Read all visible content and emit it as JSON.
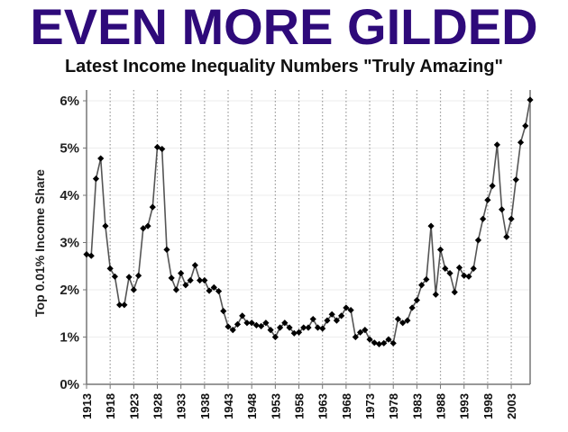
{
  "header": {
    "title": "EVEN MORE GILDED",
    "subtitle": "Latest Income Inequality Numbers \"Truly Amazing\""
  },
  "colors": {
    "title": "#2e0a7a",
    "line": "#555555",
    "marker": "#000000",
    "gridline": "#999999",
    "axis": "#777777"
  },
  "chart_data": {
    "type": "line",
    "title": "EVEN MORE GILDED",
    "subtitle": "Latest Income Inequality Numbers \"Truly Amazing\"",
    "xlabel": "",
    "ylabel": "Top 0.01% Income Share",
    "ylim": [
      0,
      6
    ],
    "xlim": [
      1913,
      2007
    ],
    "y_ticks": [
      "0%",
      "1%",
      "2%",
      "3%",
      "4%",
      "5%",
      "6%"
    ],
    "x_ticks": [
      "1913",
      "1918",
      "1923",
      "1928",
      "1933",
      "1938",
      "1943",
      "1948",
      "1953",
      "1958",
      "1963",
      "1968",
      "1973",
      "1978",
      "1983",
      "1988",
      "1993",
      "1998",
      "2003"
    ],
    "grid": {
      "vertical": "dotted at each x tick",
      "horizontal": "faint at each y tick"
    },
    "legend": "none",
    "marker": "diamond",
    "series": [
      {
        "name": "Top 0.01% Income Share (%)",
        "start_year": 1913,
        "values": [
          2.75,
          2.72,
          4.35,
          4.78,
          3.35,
          2.45,
          2.28,
          1.68,
          1.68,
          2.27,
          2.0,
          2.3,
          3.3,
          3.35,
          3.75,
          5.02,
          4.98,
          2.85,
          2.25,
          2.0,
          2.35,
          2.1,
          2.2,
          2.52,
          2.2,
          2.2,
          1.98,
          2.05,
          1.97,
          1.55,
          1.22,
          1.15,
          1.27,
          1.45,
          1.3,
          1.3,
          1.25,
          1.23,
          1.3,
          1.15,
          1.0,
          1.2,
          1.3,
          1.2,
          1.08,
          1.1,
          1.2,
          1.2,
          1.38,
          1.2,
          1.18,
          1.35,
          1.48,
          1.35,
          1.45,
          1.62,
          1.57,
          1.0,
          1.1,
          1.15,
          0.95,
          0.88,
          0.85,
          0.87,
          0.95,
          0.87,
          1.38,
          1.3,
          1.35,
          1.62,
          1.78,
          2.1,
          2.22,
          3.35,
          1.9,
          2.85,
          2.45,
          2.35,
          1.95,
          2.47,
          2.3,
          2.28,
          2.45,
          3.05,
          3.5,
          3.9,
          4.2,
          5.07,
          3.7,
          3.12,
          3.5,
          4.33,
          5.12,
          5.47,
          6.02
        ]
      }
    ]
  }
}
